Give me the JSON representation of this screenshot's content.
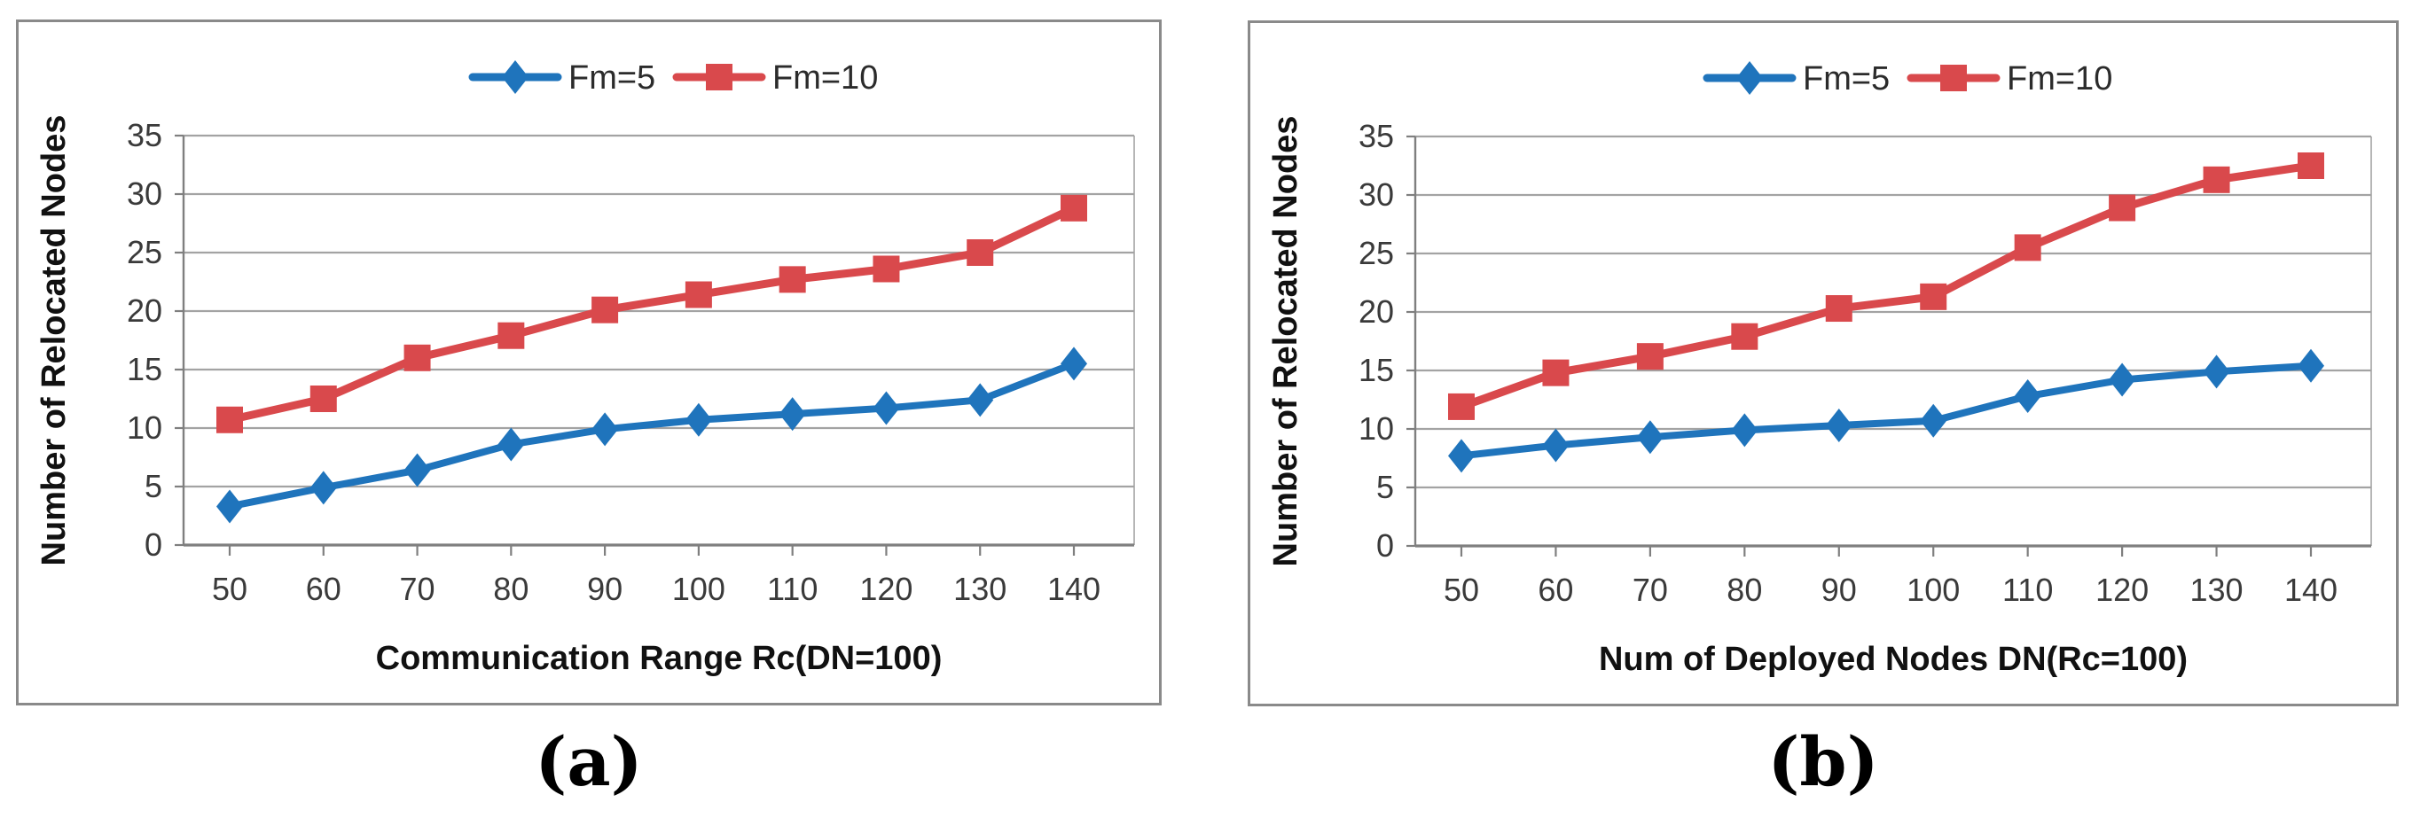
{
  "page": {
    "background": "#ffffff",
    "caption_a": "(a)",
    "caption_b": "(b)"
  },
  "style_colors": {
    "series_blue": "#1f74bc",
    "series_red": "#d9494c",
    "gridline": "#a3a3a3",
    "axis": "#7f7f7f",
    "tick_text": "#3a3a3a",
    "title_text": "#111111",
    "panel_border": "#8a8a8a"
  },
  "chart_data": [
    {
      "id": "a",
      "type": "line",
      "caption": "(a)",
      "xlabel": "Communication Range Rc(DN=100)",
      "ylabel": "Number of Relocated Nodes",
      "x": [
        50,
        60,
        70,
        80,
        90,
        100,
        110,
        120,
        130,
        140
      ],
      "ylim": [
        0,
        35
      ],
      "yticks": [
        0,
        5,
        10,
        15,
        20,
        25,
        30,
        35
      ],
      "grid": true,
      "legend_position": "top-center",
      "series": [
        {
          "name": "Fm=5",
          "color": "#1f74bc",
          "marker": "diamond",
          "values": [
            3.3,
            4.9,
            6.4,
            8.6,
            9.9,
            10.7,
            11.2,
            11.7,
            12.4,
            15.5
          ]
        },
        {
          "name": "Fm=10",
          "color": "#d9494c",
          "marker": "square",
          "values": [
            10.7,
            12.5,
            16.0,
            17.9,
            20.1,
            21.4,
            22.7,
            23.6,
            25.0,
            28.8
          ]
        }
      ]
    },
    {
      "id": "b",
      "type": "line",
      "caption": "(b)",
      "xlabel": "Num of Deployed Nodes DN(Rc=100)",
      "ylabel": "Number of Relocated Nodes",
      "x": [
        50,
        60,
        70,
        80,
        90,
        100,
        110,
        120,
        130,
        140
      ],
      "ylim": [
        0,
        35
      ],
      "yticks": [
        0,
        5,
        10,
        15,
        20,
        25,
        30,
        35
      ],
      "grid": true,
      "legend_position": "top-center",
      "series": [
        {
          "name": "Fm=5",
          "color": "#1f74bc",
          "marker": "diamond",
          "values": [
            7.7,
            8.6,
            9.3,
            9.9,
            10.3,
            10.7,
            12.8,
            14.2,
            14.9,
            15.4
          ]
        },
        {
          "name": "Fm=10",
          "color": "#d9494c",
          "marker": "square",
          "values": [
            11.9,
            14.8,
            16.2,
            17.9,
            20.3,
            21.3,
            25.5,
            28.9,
            31.3,
            32.5
          ]
        }
      ]
    }
  ]
}
